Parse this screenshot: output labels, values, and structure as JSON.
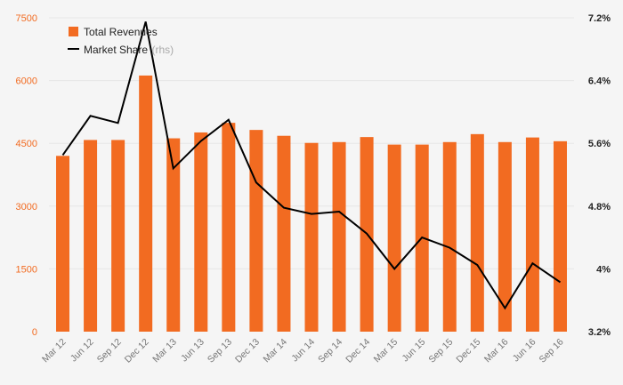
{
  "chart_data": {
    "type": "bar+line",
    "title": "",
    "categories": [
      "Mar 12",
      "Jun 12",
      "Sep 12",
      "Dec 12",
      "Mar 13",
      "Jun 13",
      "Sep 13",
      "Dec 13",
      "Mar 14",
      "Jun 14",
      "Sep 14",
      "Dec 14",
      "Mar 15",
      "Jun 15",
      "Sep 15",
      "Dec 15",
      "Mar 16",
      "Jun 16",
      "Sep 16"
    ],
    "series": [
      {
        "name": "Total Revenues",
        "type": "bar",
        "axis": "left",
        "color": "#f26b21",
        "values": [
          4200,
          4580,
          4580,
          6120,
          4620,
          4760,
          4990,
          4820,
          4680,
          4510,
          4530,
          4650,
          4470,
          4470,
          4530,
          4720,
          4530,
          4640,
          4550
        ]
      },
      {
        "name": "Market Share",
        "name_suffix": "(rhs)",
        "type": "line",
        "axis": "right",
        "color": "#000000",
        "values": [
          5.45,
          5.95,
          5.86,
          7.15,
          5.28,
          5.63,
          5.9,
          5.1,
          4.78,
          4.7,
          4.73,
          4.45,
          4.0,
          4.4,
          4.27,
          4.05,
          3.5,
          4.07,
          3.83
        ]
      }
    ],
    "y_left": {
      "ylim": [
        0,
        7500
      ],
      "ticks": [
        0,
        1500,
        3000,
        4500,
        6000,
        7500
      ],
      "tick_labels": [
        "0",
        "1500",
        "3000",
        "4500",
        "6000",
        "7500"
      ]
    },
    "y_right": {
      "ylim": [
        3.2,
        7.2
      ],
      "ticks": [
        3.2,
        4.0,
        4.8,
        5.6,
        6.4,
        7.2
      ],
      "tick_labels": [
        "3.2%",
        "4%",
        "4.8%",
        "5.6%",
        "6.4%",
        "7.2%"
      ]
    },
    "grid": true,
    "legend": "top-left"
  }
}
